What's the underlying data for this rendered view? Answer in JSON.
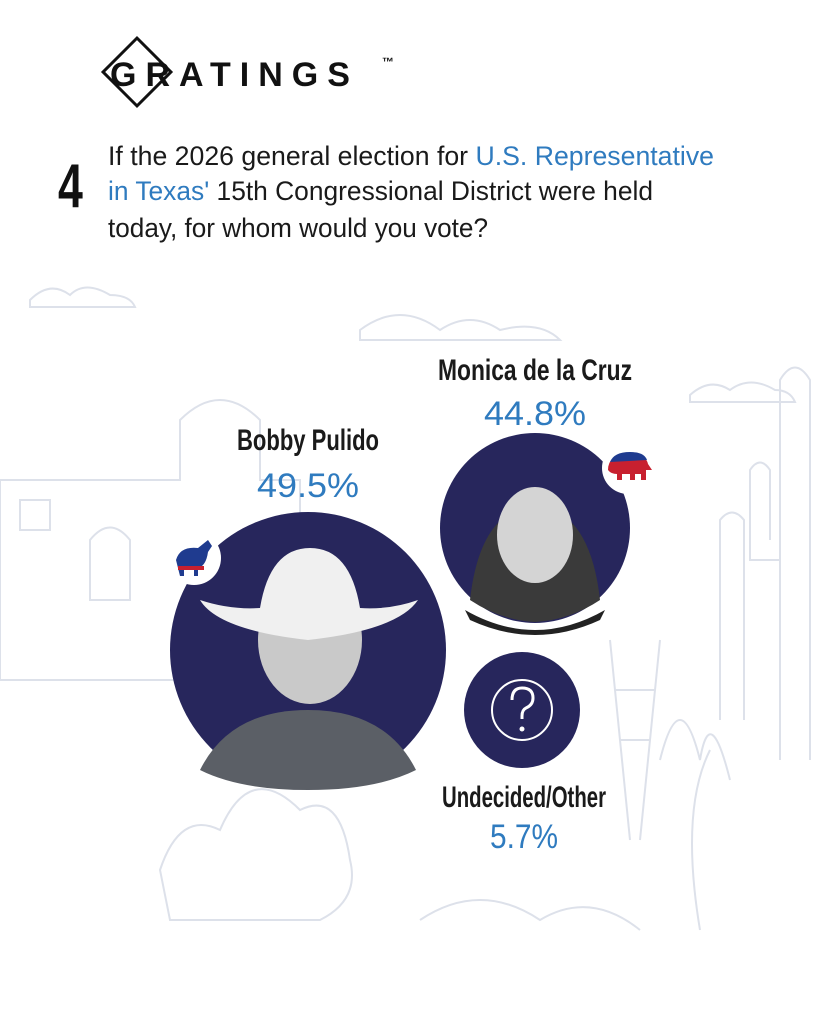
{
  "logo": {
    "text": "GRATINGS",
    "trademark": "™"
  },
  "question": {
    "number": "4",
    "line1_plain": "If the 2026 general election for ",
    "line1_highlight": "U.S. Representative",
    "line2_highlight": "in Texas'",
    "line2_plain": " 15th Congressional District were held",
    "line3_plain": "today, for whom would you vote?"
  },
  "results": [
    {
      "name": "Bobby Pulido",
      "percent": "49.5%"
    },
    {
      "name": "Monica de la Cruz",
      "percent": "44.8%"
    },
    {
      "name": "Undecided/Other",
      "percent": "5.7%"
    }
  ]
}
